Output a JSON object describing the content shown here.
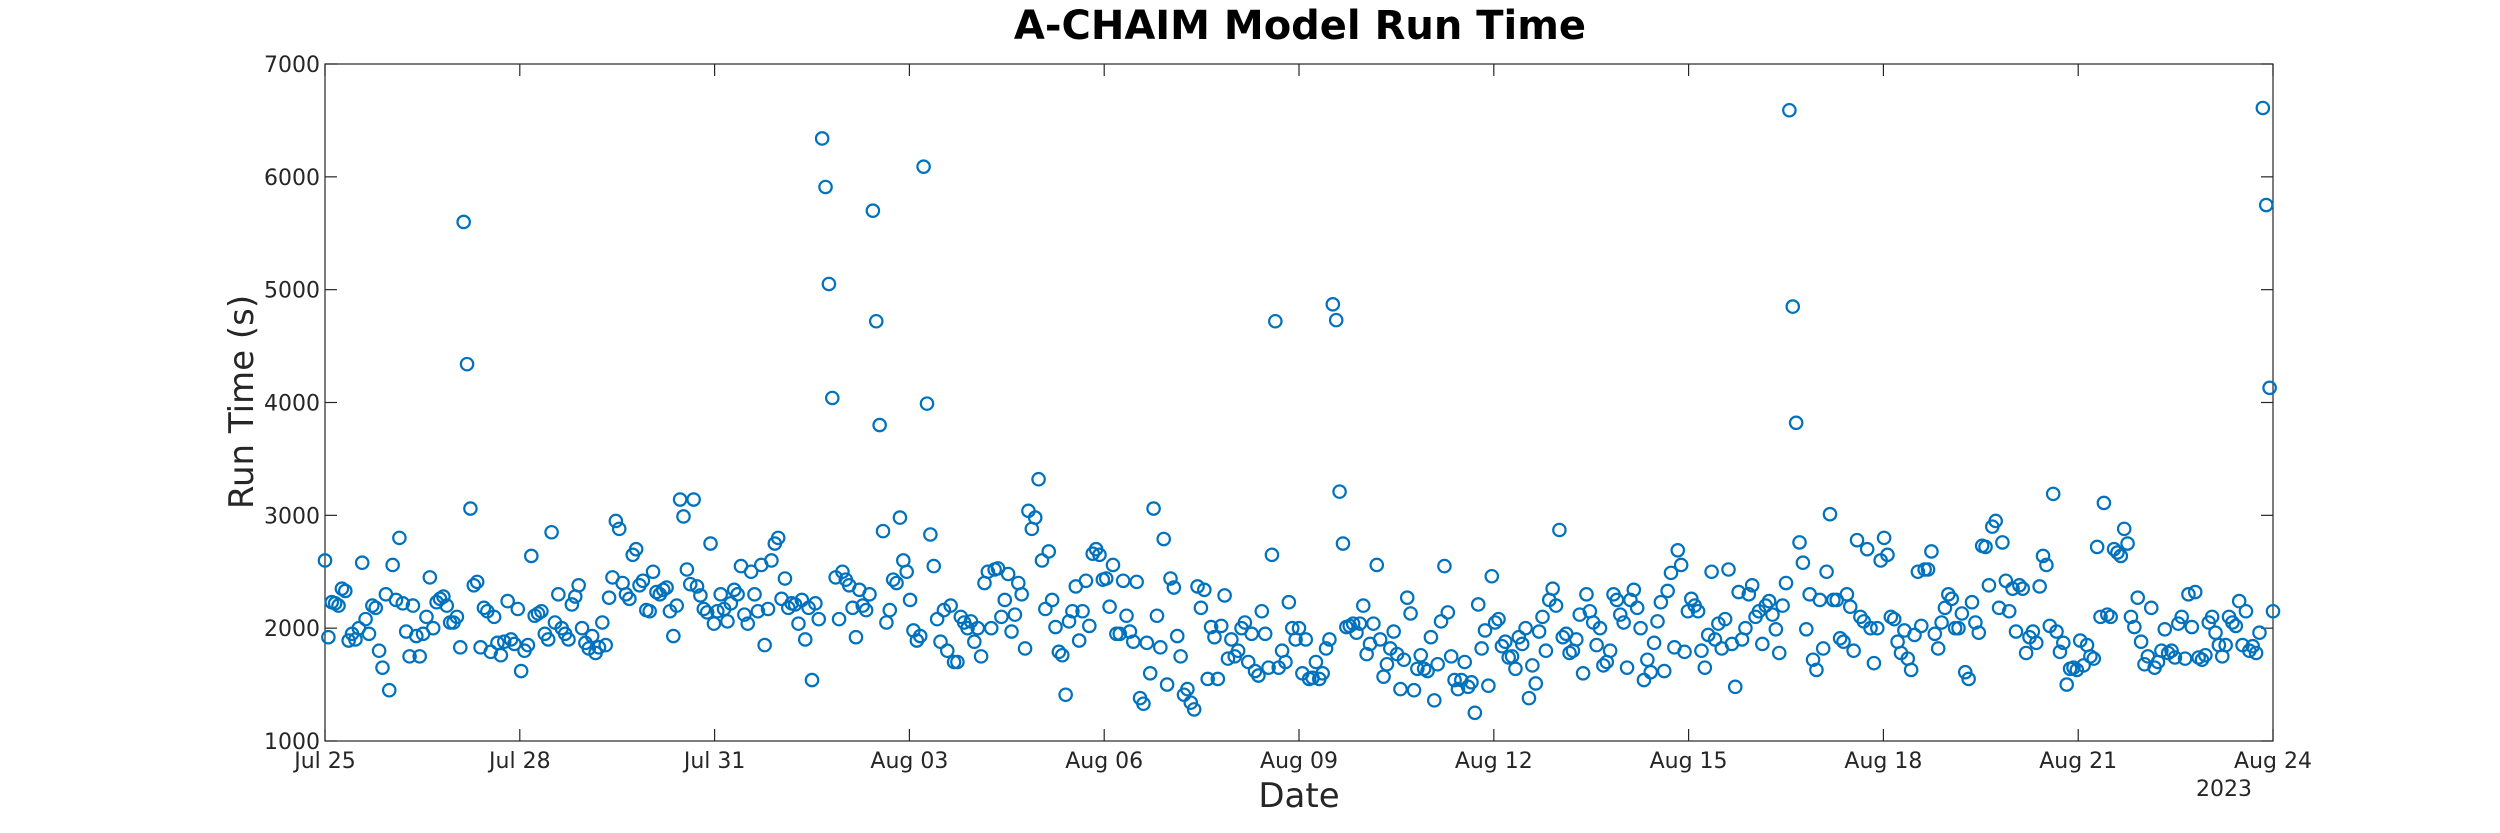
{
  "chart_data": {
    "type": "scatter",
    "title": "A-CHAIM Model Run Time",
    "xlabel": "Date",
    "ylabel": "Run Time (s)",
    "year_label": "2023",
    "x_range": [
      "2023-07-25",
      "2023-08-24"
    ],
    "ylim": [
      1000,
      7000
    ],
    "y_ticks": [
      1000,
      2000,
      3000,
      4000,
      5000,
      6000,
      7000
    ],
    "x_ticks": [
      {
        "date": "2023-07-25",
        "label": "Jul 25"
      },
      {
        "date": "2023-07-28",
        "label": "Jul 28"
      },
      {
        "date": "2023-07-31",
        "label": "Jul 31"
      },
      {
        "date": "2023-08-03",
        "label": "Aug 03"
      },
      {
        "date": "2023-08-06",
        "label": "Aug 06"
      },
      {
        "date": "2023-08-09",
        "label": "Aug 09"
      },
      {
        "date": "2023-08-12",
        "label": "Aug 12"
      },
      {
        "date": "2023-08-15",
        "label": "Aug 15"
      },
      {
        "date": "2023-08-18",
        "label": "Aug 18"
      },
      {
        "date": "2023-08-21",
        "label": "Aug 21"
      },
      {
        "date": "2023-08-24",
        "label": "Aug 24"
      }
    ],
    "marker": "open-circle",
    "grid": false,
    "colors": {
      "marker": "#0072BD",
      "axis": "#262626"
    },
    "series": [
      {
        "values": [
          2600,
          1920,
          2230,
          2220,
          2200,
          2350,
          2330,
          1890,
          1950,
          1900,
          2000,
          2580,
          2080,
          1950,
          2200,
          2180,
          1800,
          1650,
          2300,
          1450,
          2560,
          2250,
          2800,
          2220,
          1970,
          1750,
          2200,
          1930,
          1750,
          1950,
          2100,
          2450,
          2000,
          2230,
          2260,
          2280,
          2200,
          2050,
          2050,
          2100,
          1830,
          5600,
          4340,
          3060,
          2380,
          2410,
          1830,
          2180,
          2150,
          1790,
          2100,
          1870,
          1760,
          1880,
          2240,
          1900,
          1860,
          2170,
          1620,
          1800,
          1850,
          2640,
          2110,
          2130,
          2150,
          1950,
          1900,
          2850,
          2050,
          2300,
          2000,
          1950,
          1900,
          2210,
          2280,
          2380,
          2000,
          1870,
          1820,
          1930,
          1780,
          1830,
          2050,
          1850,
          2270,
          2450,
          2950,
          2880,
          2400,
          2300,
          2260,
          2650,
          2700,
          2380,
          2420,
          2160,
          2150,
          2500,
          2320,
          2300,
          2340,
          2360,
          2150,
          1930,
          2200,
          3140,
          2990,
          2520,
          2390,
          3140,
          2370,
          2290,
          2170,
          2140,
          2750,
          2040,
          2150,
          2300,
          2170,
          2060,
          2220,
          2340,
          2300,
          2550,
          2120,
          2040,
          2500,
          2300,
          2150,
          2560,
          1850,
          2170,
          2600,
          2750,
          2800,
          2260,
          2440,
          2180,
          2220,
          2210,
          2040,
          2250,
          1900,
          2180,
          1540,
          2220,
          2080,
          6340,
          5910,
          5050,
          4040,
          2450,
          2080,
          2500,
          2430,
          2380,
          2180,
          1920,
          2340,
          2200,
          2160,
          2300,
          5700,
          4720,
          3800,
          2860,
          2050,
          2160,
          2430,
          2400,
          2980,
          2600,
          2500,
          2250,
          1980,
          1890,
          1930,
          6090,
          3990,
          2830,
          2550,
          2080,
          1880,
          2160,
          1800,
          2200,
          1700,
          1700,
          2100,
          2050,
          2000,
          2060,
          1880,
          2000,
          1750,
          2400,
          2500,
          2000,
          2520,
          2530,
          2100,
          2250,
          2480,
          1970,
          2120,
          2400,
          2300,
          1820,
          3040,
          2880,
          2980,
          3320,
          2600,
          2170,
          2680,
          2250,
          2010,
          1790,
          1760,
          1410,
          2060,
          2150,
          2370,
          1890,
          2150,
          2420,
          2020,
          2660,
          2700,
          2650,
          2430,
          2440,
          2190,
          2560,
          1950,
          1950,
          2420,
          2110,
          1970,
          1880,
          2410,
          1380,
          1330,
          1870,
          1600,
          3060,
          2110,
          1830,
          2790,
          1500,
          2440,
          2360,
          1930,
          1750,
          1410,
          1460,
          1340,
          1280,
          2370,
          2180,
          2340,
          1550,
          2010,
          1920,
          1550,
          2020,
          2290,
          1730,
          1900,
          1750,
          1800,
          2000,
          2050,
          1700,
          1950,
          1620,
          1580,
          2150,
          1950,
          1650,
          2650,
          4720,
          1650,
          1800,
          1700,
          2230,
          2000,
          1900,
          2000,
          1600,
          1900,
          1550,
          1560,
          1700,
          1550,
          1600,
          1820,
          1900,
          4870,
          4730,
          3210,
          2750,
          2010,
          2020,
          2040,
          1960,
          2040,
          2200,
          1770,
          1860,
          2040,
          2560,
          1900,
          1570,
          1680,
          1820,
          1970,
          1770,
          1460,
          1720,
          2270,
          2130,
          1450,
          1640,
          1760,
          1640,
          1620,
          1920,
          1360,
          1680,
          2060,
          2550,
          2140,
          1750,
          1540,
          1460,
          1540,
          1700,
          1480,
          1520,
          1250,
          2210,
          1820,
          1980,
          1490,
          2460,
          2050,
          2080,
          1840,
          1880,
          1740,
          1750,
          1640,
          1920,
          1860,
          2000,
          1380,
          1670,
          1510,
          1970,
          2100,
          1800,
          2250,
          2350,
          2200,
          2870,
          1920,
          1950,
          1780,
          1800,
          1900,
          2120,
          1600,
          2300,
          2150,
          2050,
          1850,
          2000,
          1670,
          1700,
          1800,
          2300,
          2250,
          2120,
          2050,
          1650,
          2250,
          2340,
          2180,
          2000,
          1540,
          1720,
          1610,
          1870,
          2060,
          2230,
          1620,
          2330,
          2490,
          1830,
          2690,
          2560,
          1790,
          2150,
          2260,
          2200,
          2150,
          1800,
          1650,
          1940,
          2500,
          1900,
          2040,
          1820,
          2080,
          2520,
          1860,
          1480,
          2320,
          1900,
          2000,
          2300,
          2380,
          2100,
          2150,
          1860,
          2200,
          2240,
          2120,
          1990,
          1780,
          2200,
          2400,
          6590,
          4850,
          3820,
          2760,
          2580,
          1990,
          2300,
          1720,
          1630,
          2250,
          1820,
          2500,
          3010,
          2250,
          2250,
          1910,
          1880,
          2300,
          2190,
          1800,
          2780,
          2100,
          2060,
          2700,
          2000,
          1690,
          2000,
          2600,
          2800,
          2650,
          2100,
          2080,
          1880,
          1780,
          1980,
          1730,
          1630,
          1940,
          2500,
          2020,
          2520,
          2520,
          2680,
          1950,
          1820,
          2050,
          2180,
          2300,
          2260,
          2000,
          2000,
          2130,
          1610,
          1550,
          2230,
          2050,
          1960,
          2730,
          2720,
          2380,
          2900,
          2950,
          2180,
          2760,
          2420,
          2150,
          2350,
          1970,
          2380,
          2350,
          1780,
          1920,
          1970,
          1870,
          2370,
          2640,
          2560,
          2020,
          3190,
          1970,
          1790,
          1870,
          1500,
          1640,
          1650,
          1630,
          1890,
          1670,
          1850,
          1750,
          1730,
          2720,
          2100,
          3110,
          2120,
          2100,
          2700,
          2670,
          2640,
          2880,
          2750,
          2100,
          2010,
          2270,
          1880,
          1680,
          1750,
          2180,
          1650,
          1700,
          1800,
          1990,
          1780,
          1800,
          1740,
          2040,
          2100,
          1730,
          2300,
          2010,
          2320,
          1740,
          1720,
          1760,
          2050,
          2100,
          1960,
          1850,
          1750,
          1850,
          2100,
          2050,
          2020,
          2240,
          1850,
          2150,
          1800,
          1840,
          1780,
          1960,
          6610,
          5750,
          4130,
          2150
        ]
      }
    ]
  }
}
